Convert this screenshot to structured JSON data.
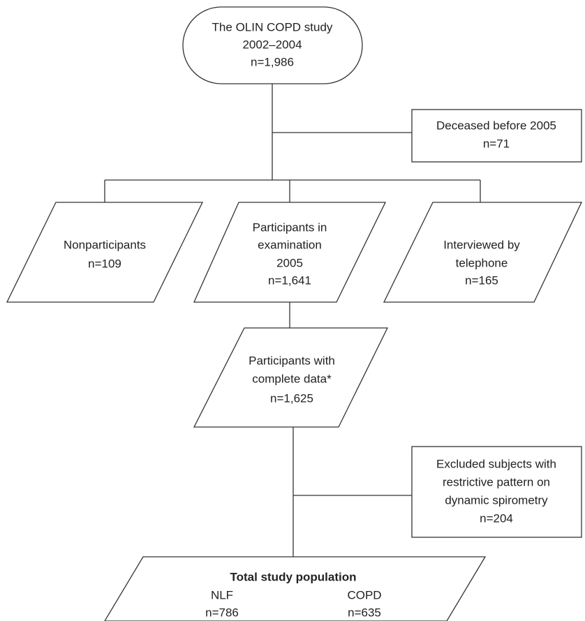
{
  "nodes": [
    {
      "lines": [
        "The OLIN COPD study",
        "2002–2004",
        "n=1,986"
      ]
    },
    {
      "lines": [
        "Deceased before 2005",
        "n=71"
      ]
    },
    {
      "lines": [
        "Nonparticipants",
        "n=109"
      ]
    },
    {
      "lines": [
        "Participants in",
        "examination",
        "2005",
        "n=1,641"
      ]
    },
    {
      "lines": [
        "Interviewed by",
        "telephone",
        "n=165"
      ]
    },
    {
      "lines": [
        "Participants with",
        "complete data*",
        "n=1,625"
      ]
    },
    {
      "lines": [
        "Excluded subjects with",
        "restrictive pattern on",
        "dynamic spirometry",
        "n=204"
      ]
    },
    {
      "title": "Total study population",
      "groups": [
        {
          "label": "NLF",
          "n": "n=786"
        },
        {
          "label": "COPD",
          "n": "n=635"
        }
      ]
    }
  ]
}
